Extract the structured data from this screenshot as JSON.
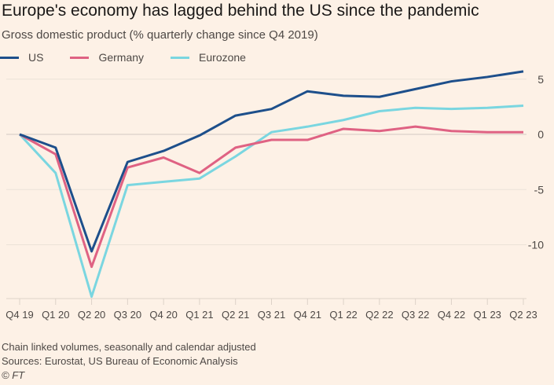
{
  "title": "Europe's economy has lagged behind the US since the pandemic",
  "subtitle": "Gross domestic product (% quarterly change since Q4 2019)",
  "footer": {
    "note": "Chain linked volumes, seasonally and calendar adjusted",
    "sources": "Sources: Eurostat, US Bureau of Economic Analysis",
    "copyright": "© FT"
  },
  "chart_data": {
    "type": "line",
    "title": "Europe's economy has lagged behind the US since the pandemic",
    "ylabel": "Gross domestic product (% quarterly change since Q4 2019)",
    "xlabel": "",
    "categories": [
      "Q4 19",
      "Q1 20",
      "Q2 20",
      "Q3 20",
      "Q4 20",
      "Q1 21",
      "Q2 21",
      "Q3 21",
      "Q4 21",
      "Q1 22",
      "Q2 22",
      "Q3 22",
      "Q4 22",
      "Q1 23",
      "Q2 23"
    ],
    "yticks": [
      5,
      0,
      -5,
      -10
    ],
    "ylim": [
      -14.8,
      5.0
    ],
    "grid": true,
    "legend": "top-left",
    "series": [
      {
        "name": "US",
        "color": "#1d4f8b",
        "values": [
          0,
          -1.2,
          -10.6,
          -2.5,
          -1.5,
          -0.1,
          1.7,
          2.3,
          3.9,
          3.5,
          3.4,
          4.1,
          4.8,
          5.2,
          5.7
        ]
      },
      {
        "name": "Germany",
        "color": "#df6283",
        "values": [
          0,
          -1.8,
          -12.0,
          -3.0,
          -2.1,
          -3.5,
          -1.2,
          -0.5,
          -0.5,
          0.5,
          0.3,
          0.7,
          0.3,
          0.2,
          0.2
        ]
      },
      {
        "name": "Eurozone",
        "color": "#7ad6e0",
        "values": [
          0,
          -3.5,
          -14.7,
          -4.6,
          -4.3,
          -4.0,
          -2.0,
          0.2,
          0.7,
          1.3,
          2.1,
          2.4,
          2.3,
          2.4,
          2.6
        ]
      }
    ]
  }
}
